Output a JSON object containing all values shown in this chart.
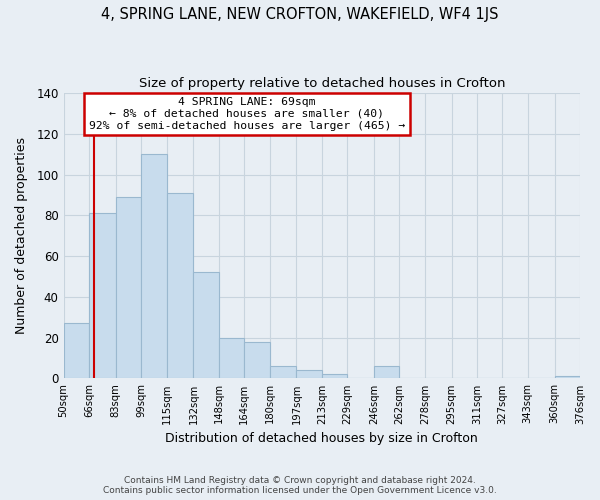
{
  "title": "4, SPRING LANE, NEW CROFTON, WAKEFIELD, WF4 1JS",
  "subtitle": "Size of property relative to detached houses in Crofton",
  "xlabel": "Distribution of detached houses by size in Crofton",
  "ylabel": "Number of detached properties",
  "bin_edges": [
    50,
    66,
    83,
    99,
    115,
    132,
    148,
    164,
    180,
    197,
    213,
    229,
    246,
    262,
    278,
    295,
    311,
    327,
    343,
    360,
    376
  ],
  "bin_labels": [
    "50sqm",
    "66sqm",
    "83sqm",
    "99sqm",
    "115sqm",
    "132sqm",
    "148sqm",
    "164sqm",
    "180sqm",
    "197sqm",
    "213sqm",
    "229sqm",
    "246sqm",
    "262sqm",
    "278sqm",
    "295sqm",
    "311sqm",
    "327sqm",
    "343sqm",
    "360sqm",
    "376sqm"
  ],
  "counts": [
    27,
    81,
    89,
    110,
    91,
    52,
    20,
    18,
    6,
    4,
    2,
    0,
    6,
    0,
    0,
    0,
    0,
    0,
    0,
    1
  ],
  "bar_color": "#c8dced",
  "bar_edge_color": "#9ab8cf",
  "vline_x": 69,
  "vline_color": "#cc0000",
  "annotation_line1": "4 SPRING LANE: 69sqm",
  "annotation_line2": "← 8% of detached houses are smaller (40)",
  "annotation_line3": "92% of semi-detached houses are larger (465) →",
  "annotation_box_color": "#ffffff",
  "annotation_box_edge": "#cc0000",
  "ylim": [
    0,
    140
  ],
  "yticks": [
    0,
    20,
    40,
    60,
    80,
    100,
    120,
    140
  ],
  "footer1": "Contains HM Land Registry data © Crown copyright and database right 2024.",
  "footer2": "Contains public sector information licensed under the Open Government Licence v3.0.",
  "background_color": "#e8eef4",
  "plot_background": "#e8eef4",
  "grid_color": "#c8d4de",
  "title_fontsize": 10.5,
  "subtitle_fontsize": 9.5,
  "xlabel_fontsize": 9,
  "ylabel_fontsize": 9
}
